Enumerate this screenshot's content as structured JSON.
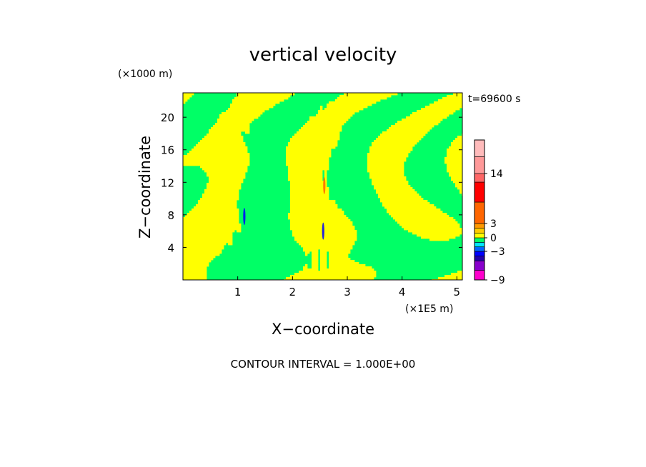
{
  "chart_data": {
    "type": "heatmap",
    "title": "vertical velocity",
    "xlabel": "X−coordinate",
    "ylabel": "Z−coordinate",
    "x_unit": "(×1E5 m)",
    "y_unit": "(×1000 m)",
    "time_label": "t=69600 s",
    "xlim": [
      0,
      5.1
    ],
    "ylim": [
      0,
      23
    ],
    "xticks": [
      1,
      2,
      3,
      4,
      5
    ],
    "yticks": [
      4,
      8,
      12,
      16,
      20
    ],
    "contour_interval_label": "CONTOUR INTERVAL = 1.000E+00",
    "field_colors": {
      "positive": "#ffff00",
      "negative": "#00ff66"
    },
    "colorbar": {
      "levels": [
        -9,
        -7,
        -5,
        -4,
        -3,
        -2,
        -1,
        0,
        1,
        2,
        3,
        4,
        11,
        14,
        17,
        20
      ],
      "labels": [
        -9,
        -3,
        0,
        3,
        14
      ],
      "colors": [
        "#ff00cc",
        "#8800cc",
        "#2200aa",
        "#0000ff",
        "#0066ff",
        "#00e5ff",
        "#00ff66",
        "#ffff00",
        "#ffcc00",
        "#ff9900",
        "#ff6600",
        "#ff0000",
        "#ff6666",
        "#ff9999",
        "#ffbbbb"
      ]
    },
    "anomalies": [
      {
        "x": 1.12,
        "z": 7.8,
        "w": -4
      },
      {
        "x": 2.58,
        "z": 11.6,
        "w": 3
      },
      {
        "x": 2.56,
        "z": 6.0,
        "w": -4
      }
    ]
  }
}
